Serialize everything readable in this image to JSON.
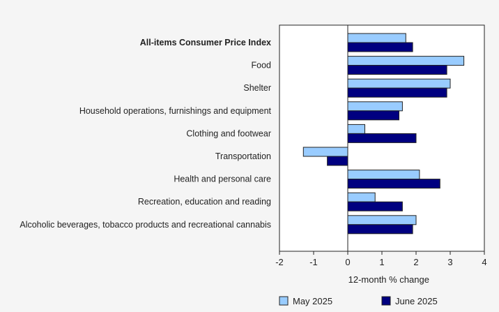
{
  "chart_data": {
    "type": "bar",
    "orientation": "horizontal",
    "xlabel": "12-month % change",
    "xlim": [
      -2,
      4
    ],
    "xticks": [
      -2,
      -1,
      0,
      1,
      2,
      3,
      4
    ],
    "grid": false,
    "legend_position": "bottom",
    "categories": [
      "All-items Consumer Price Index",
      "Food",
      "Shelter",
      "Household operations, furnishings and equipment",
      "Clothing and footwear",
      "Transportation",
      "Health and personal care",
      "Recreation, education and reading",
      "Alcoholic beverages, tobacco products and recreational cannabis"
    ],
    "bold_categories": [
      "All-items Consumer Price Index"
    ],
    "series": [
      {
        "name": "May 2025",
        "color": "#99ccff",
        "values": [
          1.7,
          3.4,
          3.0,
          1.6,
          0.5,
          -1.3,
          2.1,
          0.8,
          2.0
        ]
      },
      {
        "name": "June 2025",
        "color": "#000080",
        "values": [
          1.9,
          2.9,
          2.9,
          1.5,
          2.0,
          -0.6,
          2.7,
          1.6,
          1.9
        ]
      }
    ]
  }
}
